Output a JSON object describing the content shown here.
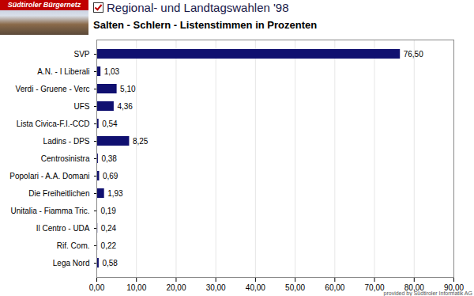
{
  "chart_data": {
    "type": "bar",
    "orientation": "horizontal",
    "title": "Regional- und Landtagswahlen '98",
    "subtitle": "Salten - Schlern - Listenstimmen in Prozenten",
    "annotations": [
      "Südtiroler Bürgernetz",
      "provided by Südtiroler Informatik AG"
    ],
    "categories": [
      "SVP",
      "A.N. - I Liberali",
      "Verdi - Gruene - Verc",
      "UFS",
      "Lista Civica-F.I.-CCD",
      "Ladins - DPS",
      "Centrosinistra",
      "Popolari - A.A. Domani",
      "Die Freiheitlichen",
      "Unitalia - Fiamma Tric.",
      "Il Centro - UDA",
      "Rif. Com.",
      "Lega Nord"
    ],
    "values": [
      76.5,
      1.03,
      5.1,
      4.36,
      0.54,
      8.25,
      0.38,
      0.69,
      1.93,
      0.19,
      0.24,
      0.22,
      0.58
    ],
    "value_labels": [
      "76,50",
      "1,03",
      "5,10",
      "4,36",
      "0,54",
      "8,25",
      "0,38",
      "0,69",
      "1,93",
      "0,19",
      "0,24",
      "0,22",
      "0,58"
    ],
    "data_labels": true,
    "color": "#101070",
    "xlim": [
      0,
      90
    ],
    "xticks": [
      {
        "value": 0,
        "label": "0,00"
      },
      {
        "value": 10,
        "label": "10,00"
      },
      {
        "value": 20,
        "label": "20,00"
      },
      {
        "value": 30,
        "label": "30,00"
      },
      {
        "value": 40,
        "label": "40,00"
      },
      {
        "value": 50,
        "label": "50,00"
      },
      {
        "value": 60,
        "label": "60,00"
      },
      {
        "value": 70,
        "label": "70,00"
      },
      {
        "value": 80,
        "label": "80,00"
      },
      {
        "value": 90,
        "label": "90,00"
      }
    ],
    "grid": true
  }
}
